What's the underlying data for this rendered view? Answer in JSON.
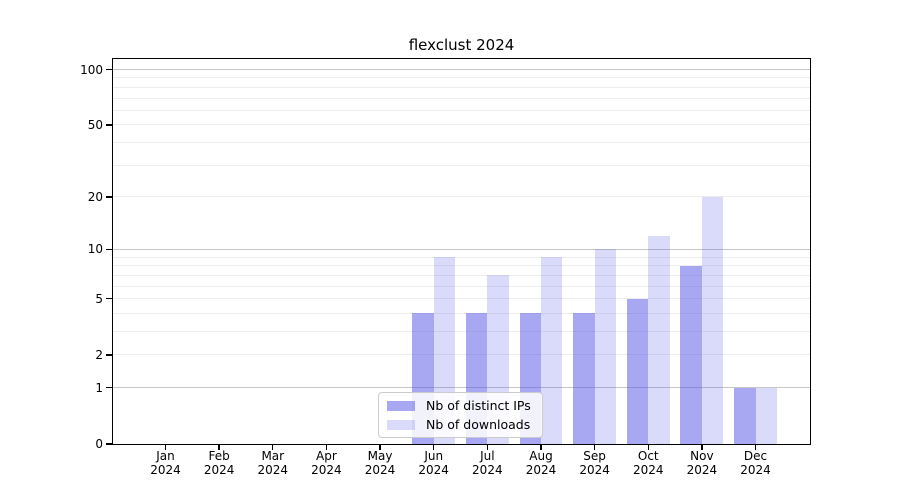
{
  "title": "flexclust 2024",
  "chart_data": {
    "type": "bar",
    "title": "flexclust 2024",
    "xlabel": "",
    "ylabel": "",
    "categories": [
      "Jan 2024",
      "Feb 2024",
      "Mar 2024",
      "Apr 2024",
      "May 2024",
      "Jun 2024",
      "Jul 2024",
      "Aug 2024",
      "Sep 2024",
      "Oct 2024",
      "Nov 2024",
      "Dec 2024"
    ],
    "series": [
      {
        "name": "Nb of distinct IPs",
        "color": "rgba(82,82,230,0.5)",
        "values": [
          0,
          0,
          0,
          0,
          0,
          4,
          4,
          4,
          4,
          5,
          8,
          1
        ]
      },
      {
        "name": "Nb of downloads",
        "color": "rgba(82,82,230,0.21)",
        "values": [
          0,
          0,
          0,
          0,
          0,
          9,
          7,
          9,
          10,
          12,
          20,
          1
        ]
      }
    ],
    "y_scale": "log1p",
    "y_ticks": [
      0,
      1,
      2,
      5,
      10,
      20,
      50,
      100
    ],
    "y_major_gridlines": [
      1,
      10,
      100
    ],
    "y_minor_gridlines": [
      2,
      3,
      4,
      5,
      6,
      7,
      8,
      9,
      20,
      30,
      40,
      50,
      60,
      70,
      80,
      90
    ],
    "ylim": [
      0,
      114
    ],
    "grid": "on",
    "legend_position": "lower center, inside plot"
  },
  "colors": {
    "background": "#ffffff",
    "spine": "#000000",
    "major_grid": "#c6c6c6",
    "minor_grid": "#ededed",
    "bar_base": "#5252e6"
  }
}
